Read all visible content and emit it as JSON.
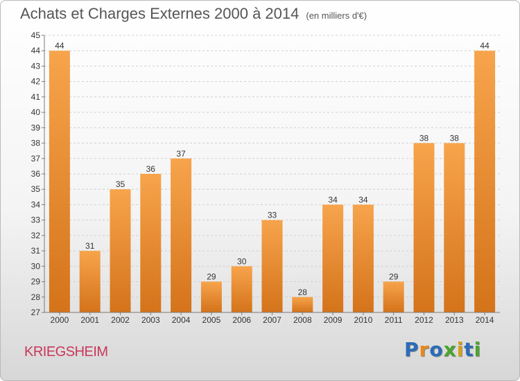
{
  "title": {
    "main": "Achats et Charges Externes 2000 à 2014",
    "unit": "(en milliers d'€)"
  },
  "commune": "KRIEGSHEIM",
  "logo": {
    "text": "Proxiti",
    "letters": [
      {
        "ch": "P",
        "color": "#2b6cb8"
      },
      {
        "ch": "r",
        "color": "#e8891a"
      },
      {
        "ch": "o",
        "color": "#2b6cb8"
      },
      {
        "ch": "x",
        "color": "#4aa52e"
      },
      {
        "ch": "i",
        "color": "#d6a21c"
      },
      {
        "ch": "t",
        "color": "#2b6cb8"
      },
      {
        "ch": "i",
        "color": "#4aa52e"
      }
    ]
  },
  "chart_data": {
    "type": "bar",
    "title": "Achats et Charges Externes 2000 à 2014",
    "subtitle": "(en milliers d'€)",
    "xlabel": "",
    "ylabel": "",
    "ylim": [
      27,
      45
    ],
    "yticks": [
      27,
      28,
      29,
      30,
      31,
      32,
      33,
      34,
      35,
      36,
      37,
      38,
      39,
      40,
      41,
      42,
      43,
      44,
      45
    ],
    "grid": true,
    "categories": [
      "2000",
      "2001",
      "2002",
      "2003",
      "2004",
      "2005",
      "2006",
      "2007",
      "2008",
      "2009",
      "2010",
      "2011",
      "2012",
      "2013",
      "2014"
    ],
    "values": [
      44,
      31,
      35,
      36,
      37,
      29,
      30,
      33,
      28,
      34,
      34,
      29,
      38,
      38,
      44
    ],
    "colors": {
      "bar_top": "#f7a44c",
      "bar_bottom": "#d4731a",
      "grid": "#cfcfcf",
      "axis": "#7a7a7a"
    }
  }
}
